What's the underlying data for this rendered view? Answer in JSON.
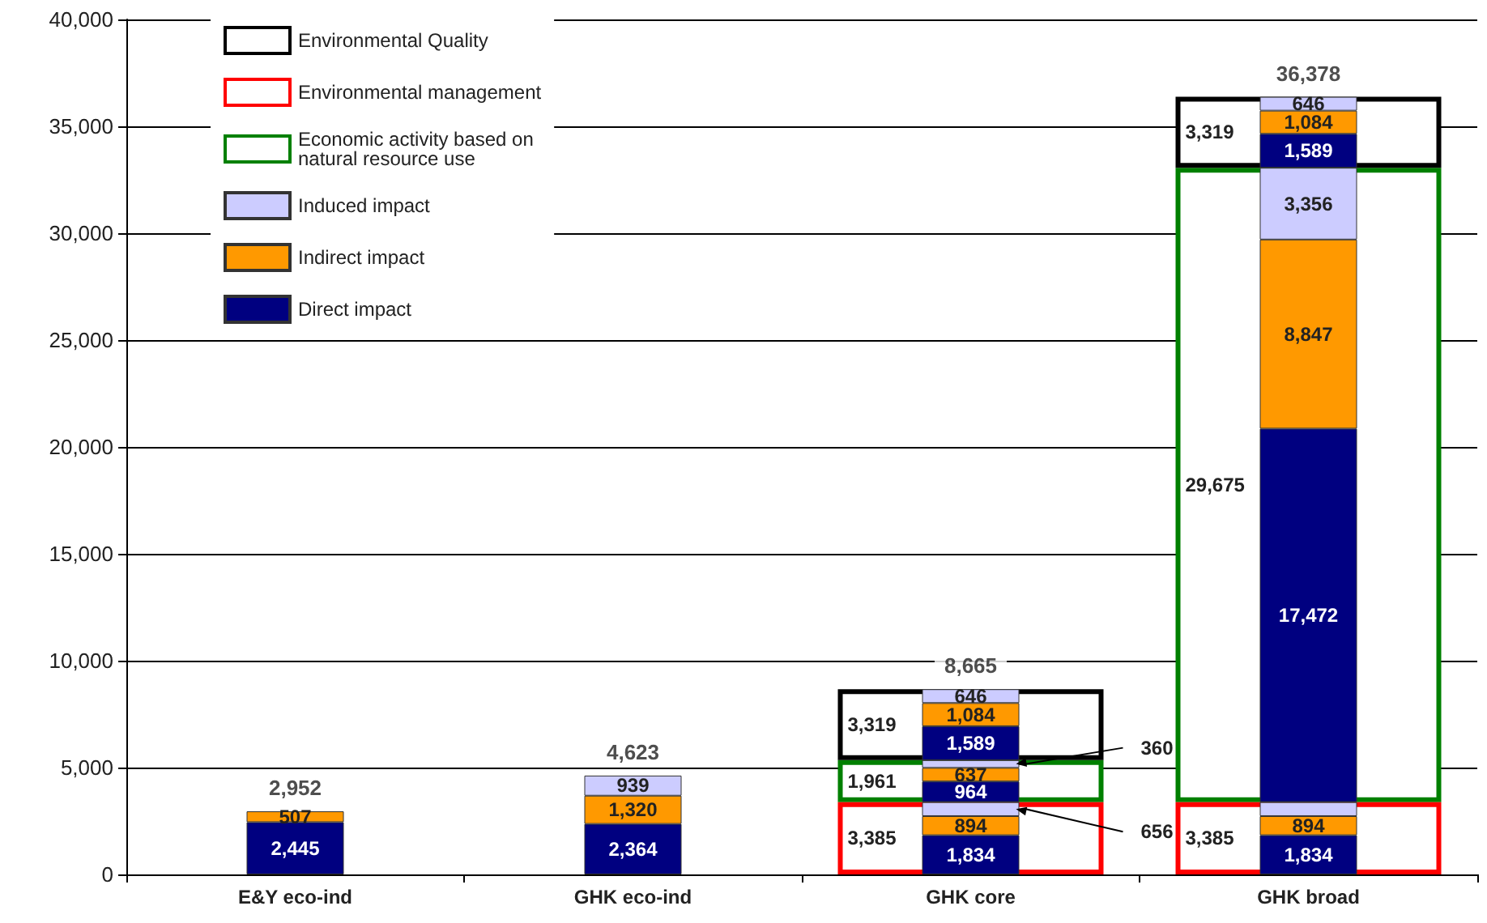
{
  "chart_data": {
    "type": "bar",
    "categories": [
      "E&Y eco-ind",
      "GHK eco-ind",
      "GHK core",
      "GHK broad"
    ],
    "series": [
      {
        "name": "Direct impact",
        "color": "#000080",
        "base": [
          0,
          0,
          0,
          0
        ],
        "values": [
          2445,
          2364,
          1834,
          1834
        ],
        "value_labels": [
          "2,445",
          "2,364",
          "1,834",
          "1,834"
        ]
      },
      {
        "name": "Indirect impact",
        "color": "#ff9900",
        "base": [
          2445,
          2364,
          1834,
          1834
        ],
        "values": [
          507,
          1320,
          894,
          894
        ],
        "value_labels": [
          "507",
          "1,320",
          "894",
          "894"
        ]
      },
      {
        "name": "Induced impact",
        "color": "#ccccff",
        "base": [
          null,
          3684,
          2728,
          2728
        ],
        "values": [
          null,
          939,
          656,
          656
        ],
        "value_labels": [
          null,
          "939",
          "656",
          null
        ]
      },
      {
        "color": "#000080",
        "base": [
          null,
          null,
          3385,
          3385
        ],
        "values": [
          null,
          null,
          964,
          17472
        ],
        "value_labels": [
          null,
          null,
          "964",
          "17,472"
        ]
      },
      {
        "color": "#ff9900",
        "base": [
          null,
          null,
          4349,
          20857
        ],
        "values": [
          null,
          null,
          637,
          8847
        ],
        "value_labels": [
          null,
          null,
          "637",
          "8,847"
        ]
      },
      {
        "color": "#ccccff",
        "base": [
          null,
          null,
          4986,
          29704
        ],
        "values": [
          null,
          null,
          360,
          3356
        ],
        "value_labels": [
          null,
          null,
          "360",
          "3,356"
        ]
      },
      {
        "color": "#000080",
        "base": [
          null,
          null,
          5346,
          33060
        ],
        "values": [
          null,
          null,
          1589,
          1589
        ],
        "value_labels": [
          null,
          null,
          "1,589",
          "1,589"
        ]
      },
      {
        "color": "#ff9900",
        "base": [
          null,
          null,
          6935,
          34649
        ],
        "values": [
          null,
          null,
          1084,
          1084
        ],
        "value_labels": [
          null,
          null,
          "1,084",
          "1,084"
        ]
      },
      {
        "color": "#ccccff",
        "base": [
          null,
          null,
          8019,
          35733
        ],
        "values": [
          null,
          null,
          646,
          646
        ],
        "value_labels": [
          null,
          null,
          "646",
          "646"
        ]
      },
      {
        "name": "Economic activity based on\nnatural resource use",
        "color": "#008000",
        "line_style": "solid",
        "base": [
          null,
          null,
          3385,
          3385
        ],
        "values": [
          null,
          null,
          1961,
          29675
        ],
        "value_labels": [
          null,
          null,
          "1,961",
          "29,675"
        ]
      },
      {
        "name": "Environmental management",
        "color": "#ff0000",
        "line_style": "solid",
        "base": [
          null,
          null,
          0,
          0
        ],
        "values": [
          null,
          null,
          3385,
          3385
        ],
        "value_labels": [
          null,
          null,
          "3,385",
          "3,385"
        ]
      },
      {
        "name": "Environmental Quality",
        "color": "#000000",
        "line_style": "solid",
        "base": [
          null,
          null,
          5346,
          33060
        ],
        "values": [
          null,
          null,
          3319,
          3319
        ],
        "value_labels": [
          null,
          null,
          "3,319",
          "3,319"
        ]
      }
    ],
    "annotations": [
      {
        "text": "2,952",
        "x": "E&Y eco-ind",
        "y": 2952
      },
      {
        "text": "4,623",
        "x": "GHK eco-ind",
        "y": 4623
      },
      {
        "text": "8,665",
        "x": "GHK core",
        "y": 8665
      },
      {
        "text": "36,378",
        "x": "GHK broad",
        "y": 36378
      }
    ],
    "ylim": [
      0,
      40000
    ],
    "yticks": [
      0,
      {
        "value": 5000,
        "label": "5,000"
      },
      {
        "value": 10000,
        "label": "10,000"
      },
      {
        "value": 15000,
        "label": "15,000"
      },
      {
        "value": 20000,
        "label": "20,000"
      },
      {
        "value": 25000,
        "label": "25,000"
      },
      {
        "value": 30000,
        "label": "30,000"
      },
      {
        "value": 35000,
        "label": "35,000"
      },
      {
        "value": 40000,
        "label": "40,000"
      }
    ],
    "grid": "y",
    "legend": "top left"
  }
}
